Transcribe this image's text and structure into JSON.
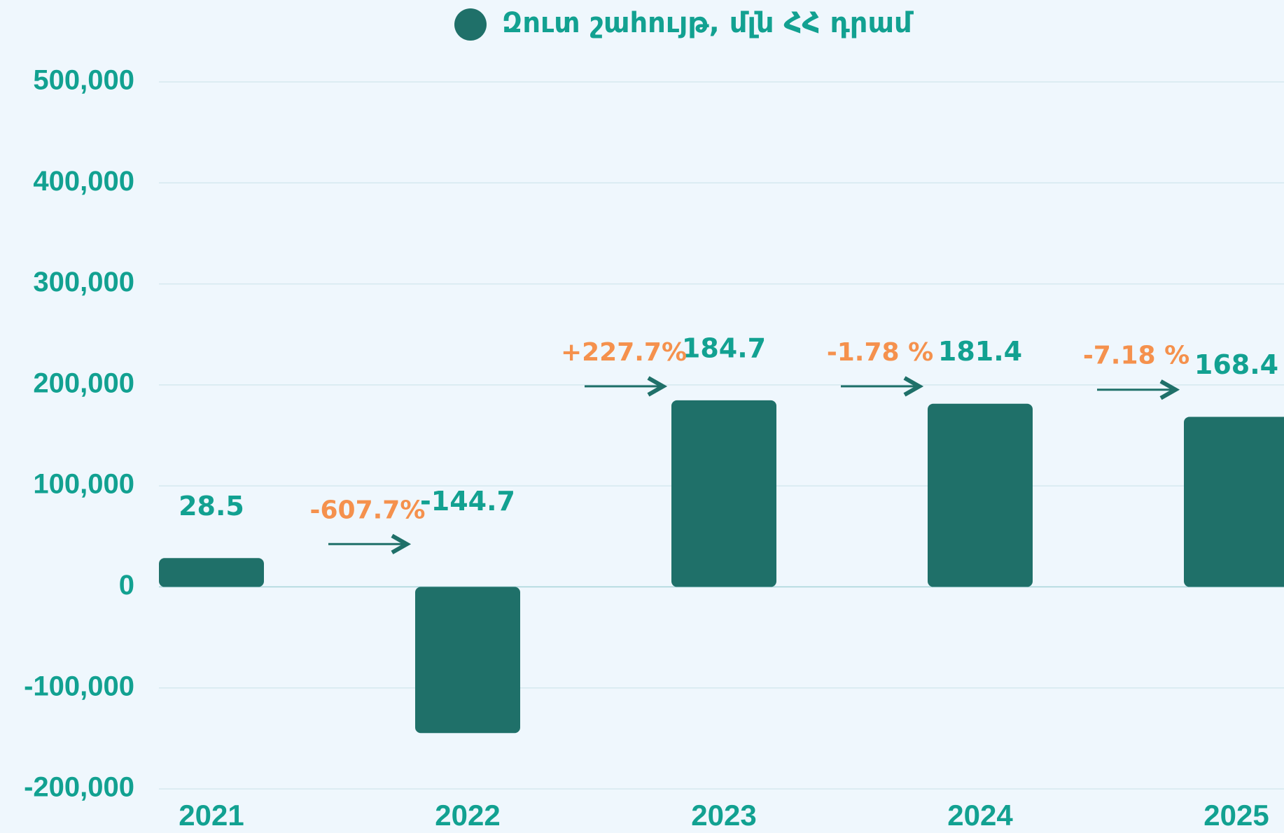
{
  "chart_data": {
    "type": "bar",
    "categories": [
      "2021",
      "2022",
      "2023",
      "2024",
      "2025"
    ],
    "series": [
      {
        "name": "Զուտ շահույթ, մլն ՀՀ դրամ",
        "color": "#1f7069",
        "values": [
          28500,
          -144700,
          184700,
          181400,
          168400
        ],
        "value_labels": [
          "28.5",
          "-144.7",
          "184.7",
          "181.4",
          "168.4"
        ]
      }
    ],
    "annotations": [
      "-607.7%",
      "+227.7%",
      "-1.78 %",
      "-7.18 %"
    ],
    "ylim": [
      -200000,
      500000
    ],
    "yticks": [
      {
        "value": -200000,
        "label": "-200,000"
      },
      {
        "value": -100000,
        "label": "-100,000"
      },
      0,
      {
        "value": 100000,
        "label": "100,000"
      },
      {
        "value": 200000,
        "label": "200,000"
      },
      {
        "value": 300000,
        "label": "300,000"
      },
      {
        "value": 400000,
        "label": "400,000"
      },
      {
        "value": 500000,
        "label": "500,000"
      }
    ],
    "grid": true,
    "legend": "top"
  }
}
